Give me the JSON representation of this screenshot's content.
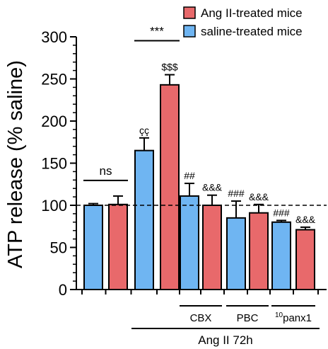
{
  "chart_data": {
    "type": "bar",
    "ylabel": "ATP release (% saline)",
    "ylim": [
      0,
      300
    ],
    "yticks": [
      0,
      50,
      100,
      150,
      200,
      250,
      300
    ],
    "reference_line": 100,
    "legend": [
      {
        "name": "Ang II-treated mice",
        "color": "#e8696b"
      },
      {
        "name": "saline-treated mice",
        "color": "#6fb5f2"
      }
    ],
    "bars": [
      {
        "group": "saline",
        "value": 100,
        "error": 2,
        "color": "#6fb5f2",
        "annotation": ""
      },
      {
        "group": "Ang II",
        "value": 101,
        "error": 10,
        "color": "#e8696b",
        "annotation": ""
      },
      {
        "group": "saline",
        "value": 165,
        "error": 15,
        "color": "#6fb5f2",
        "annotation": "çç"
      },
      {
        "group": "Ang II",
        "value": 243,
        "error": 12,
        "color": "#e8696b",
        "annotation": "$$$"
      },
      {
        "group": "saline",
        "value": 111,
        "error": 15,
        "color": "#6fb5f2",
        "annotation": "##"
      },
      {
        "group": "Ang II",
        "value": 100,
        "error": 12,
        "color": "#e8696b",
        "annotation": "&&&"
      },
      {
        "group": "saline",
        "value": 85,
        "error": 20,
        "color": "#6fb5f2",
        "annotation": "###"
      },
      {
        "group": "Ang II",
        "value": 91,
        "error": 10,
        "color": "#e8696b",
        "annotation": "&&&"
      },
      {
        "group": "saline",
        "value": 80,
        "error": 2,
        "color": "#6fb5f2",
        "annotation": "###"
      },
      {
        "group": "Ang II",
        "value": 71,
        "error": 3,
        "color": "#e8696b",
        "annotation": "&&&"
      }
    ],
    "comparisons": [
      {
        "label": "ns",
        "from_bar": 0,
        "to_bar": 1
      },
      {
        "label": "***",
        "from_bar": 2,
        "to_bar": 3
      }
    ],
    "treatment_labels": [
      {
        "text": "CBX",
        "from_bar": 4,
        "to_bar": 5
      },
      {
        "text": "PBC",
        "from_bar": 6,
        "to_bar": 7
      },
      {
        "sup": "10",
        "text": "panx1",
        "from_bar": 8,
        "to_bar": 9
      }
    ],
    "time_label": {
      "text": "Ang II 72h",
      "from_bar": 2,
      "to_bar": 9
    }
  }
}
